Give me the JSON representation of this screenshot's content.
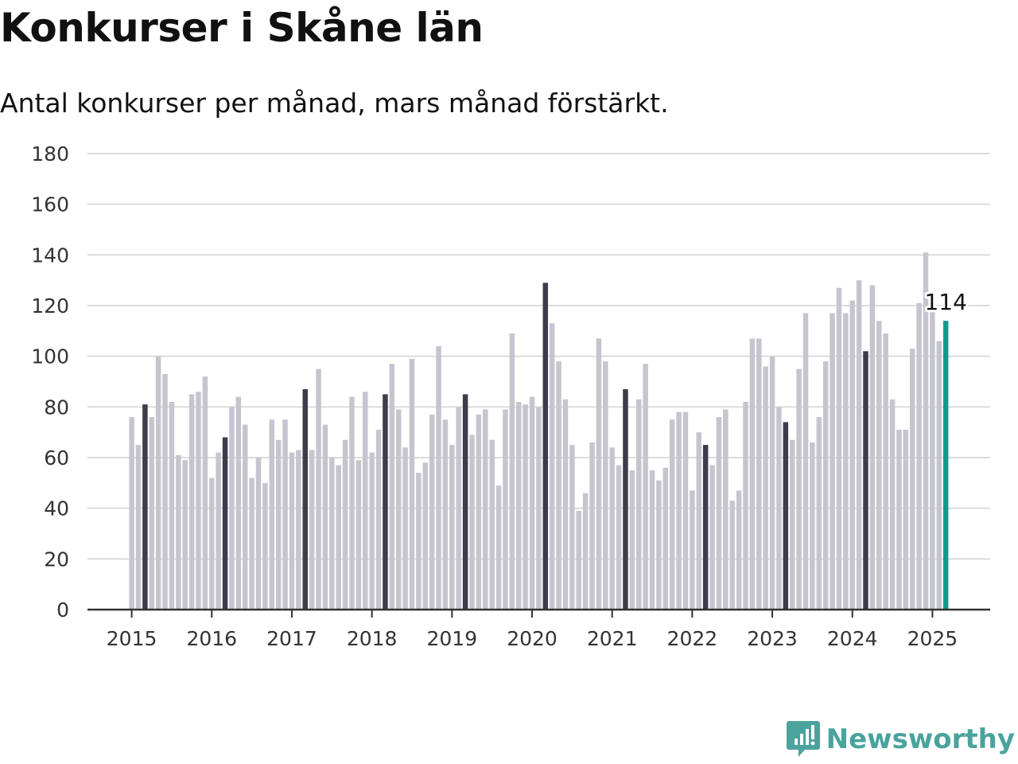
{
  "header": {
    "title": "Konkurser i Skåne län",
    "subtitle": "Antal konkurser per månad, mars månad förstärkt."
  },
  "colors": {
    "bar": "#c6c5cf",
    "highlight": "#3d3c4b",
    "latest": "#139a8f",
    "grid": "#dcdcdc",
    "axis": "#333333",
    "brand": "#4aa39d"
  },
  "brand": {
    "name": "Newsworthy",
    "icon": "newsworthy-logo-icon"
  },
  "chart_data": {
    "type": "bar",
    "title": "Konkurser i Skåne län",
    "subtitle": "Antal konkurser per månad, mars månad förstärkt.",
    "xlabel": "",
    "ylabel": "",
    "ylim": [
      0,
      180
    ],
    "yticks": [
      0,
      20,
      40,
      60,
      80,
      100,
      120,
      140,
      160,
      180
    ],
    "xticks": [
      "2015",
      "2016",
      "2017",
      "2018",
      "2019",
      "2020",
      "2021",
      "2022",
      "2023",
      "2024",
      "2025"
    ],
    "grid": true,
    "start": "2015-01",
    "end": "2025-03",
    "highlight_month": "mars",
    "values": [
      76,
      65,
      81,
      76,
      100,
      93,
      82,
      61,
      59,
      85,
      86,
      92,
      52,
      62,
      68,
      80,
      84,
      73,
      52,
      60,
      50,
      75,
      67,
      75,
      62,
      63,
      87,
      63,
      95,
      73,
      60,
      57,
      67,
      84,
      59,
      86,
      62,
      71,
      85,
      97,
      79,
      64,
      99,
      54,
      58,
      77,
      104,
      75,
      65,
      80,
      85,
      69,
      77,
      79,
      67,
      49,
      79,
      109,
      82,
      81,
      84,
      80,
      129,
      113,
      98,
      83,
      65,
      39,
      46,
      66,
      107,
      98,
      64,
      57,
      87,
      55,
      83,
      97,
      55,
      51,
      56,
      75,
      78,
      78,
      47,
      70,
      65,
      57,
      76,
      79,
      43,
      47,
      82,
      107,
      107,
      96,
      100,
      80,
      74,
      67,
      95,
      117,
      66,
      76,
      98,
      117,
      127,
      117,
      122,
      130,
      102,
      128,
      114,
      109,
      83,
      71,
      71,
      103,
      121,
      141,
      118,
      106,
      114
    ],
    "data_labels": [
      {
        "month": "2025-03",
        "value": 114,
        "text": "114"
      }
    ]
  }
}
